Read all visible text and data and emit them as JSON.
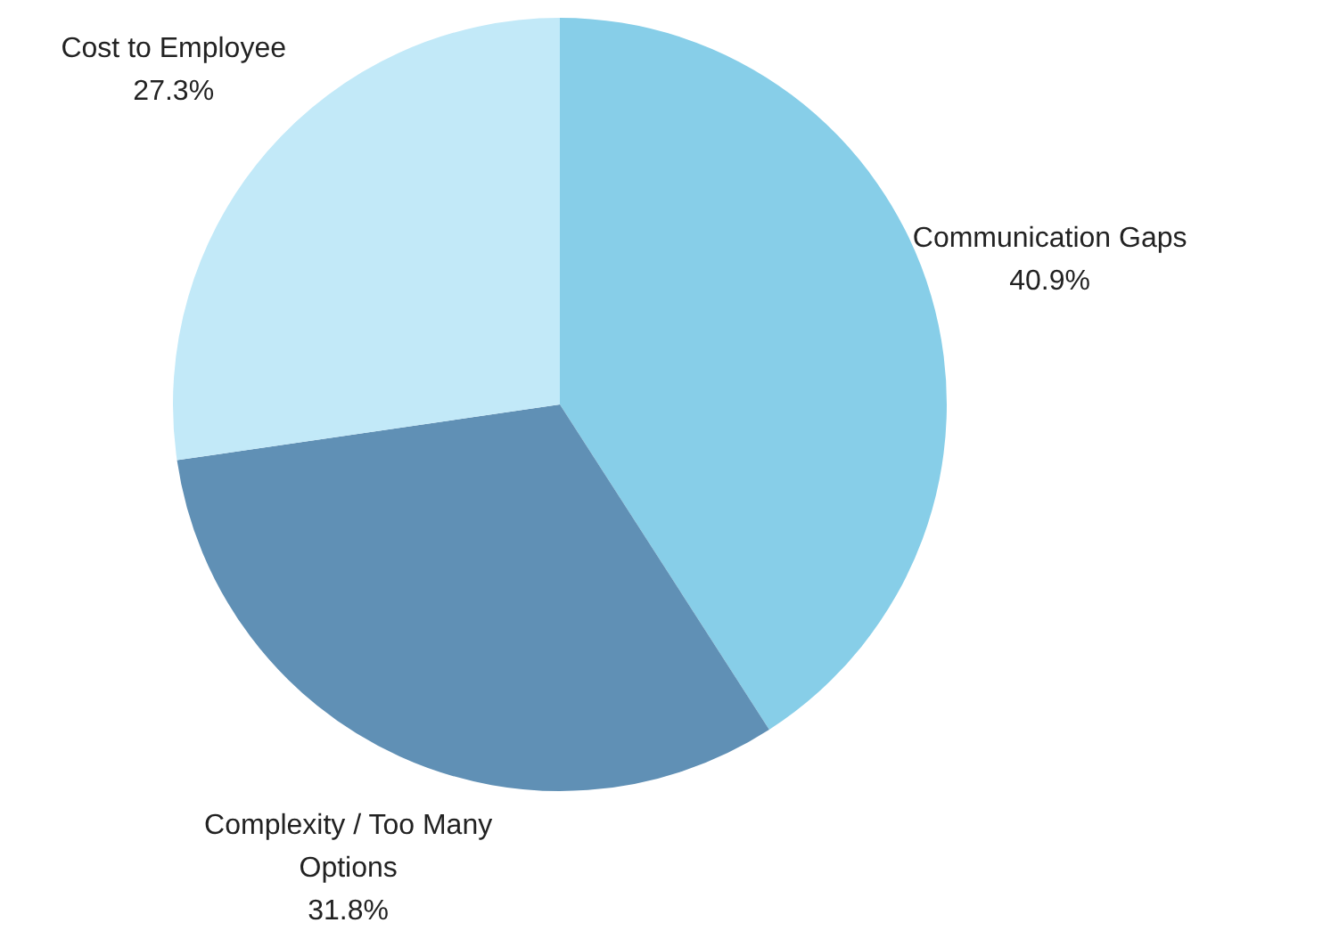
{
  "chart_data": {
    "type": "pie",
    "categories": [
      "Communication Gaps",
      "Complexity / Too Many Options",
      "Cost to Employee"
    ],
    "values": [
      40.9,
      31.8,
      27.3
    ],
    "colors": [
      "#87cee8",
      "#6090b5",
      "#c2e9f8"
    ],
    "value_labels": [
      "40.9%",
      "31.8%",
      "27.3%"
    ],
    "legend": false
  }
}
